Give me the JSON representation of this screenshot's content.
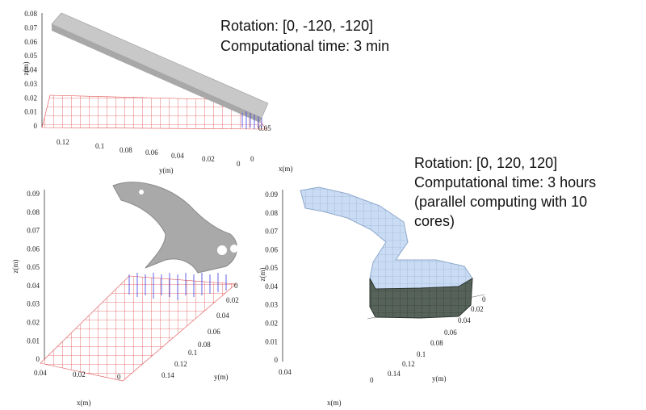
{
  "panels": [
    {
      "annotation": [
        "Rotation: [0, -120, -120]",
        "Computational time: 3 min"
      ],
      "z_title": "z(m)",
      "y_title": "y(m)",
      "x_title": "x(m)",
      "z_ticks": [
        "0.08",
        "0.07",
        "0.06",
        "0.05",
        "0.04",
        "0.03",
        "0.02",
        "0.01",
        "0"
      ],
      "y_ticks": [
        "0.12",
        "0.1",
        "0.08",
        "0.06",
        "0.04",
        "0.02",
        "0"
      ],
      "x_ticks": [
        "0.05",
        "0"
      ]
    },
    {
      "z_title": "z(m)",
      "y_title": "y(m)",
      "x_title": "x(m)",
      "z_ticks": [
        "0.09",
        "0.08",
        "0.07",
        "0.06",
        "0.05",
        "0.04",
        "0.03",
        "0.02",
        "0.01",
        "0"
      ],
      "y_ticks": [
        "0",
        "0.02",
        "0.04",
        "0.06",
        "0.08",
        "0.1",
        "0.12",
        "0.14"
      ],
      "x_ticks": [
        "0.04",
        "0.02",
        "0"
      ]
    },
    {
      "annotation": [
        "Rotation: [0, 120, 120]",
        "Computational time: 3 hours",
        "(parallel computing with 10",
        "cores)"
      ],
      "z_title": "z(m)",
      "y_title": "y(m)",
      "x_title": "x(m)",
      "z_ticks": [
        "0.09",
        "0.08",
        "0.07",
        "0.06",
        "0.05",
        "0.04",
        "0.03",
        "0.02",
        "0.01",
        "0"
      ],
      "y_ticks": [
        "0",
        "0.02",
        "0.04",
        "0.06",
        "0.08",
        "0.1",
        "0.12",
        "0.14"
      ],
      "x_ticks": [
        "0.04",
        "0"
      ]
    }
  ]
}
